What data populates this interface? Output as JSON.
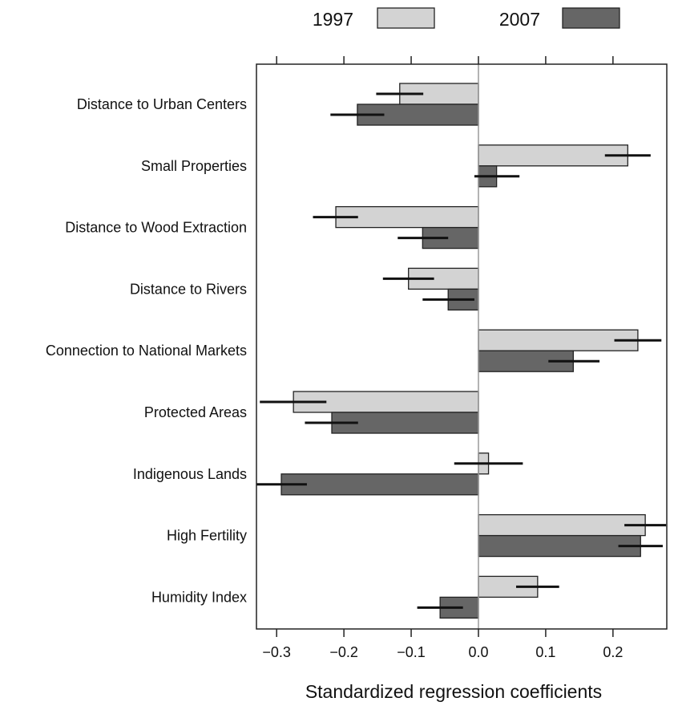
{
  "chart_data": {
    "type": "bar",
    "orientation": "horizontal",
    "xlabel": "Standardized regression coefficients",
    "xlim": [
      -0.33,
      0.28
    ],
    "xticks": [
      -0.3,
      -0.2,
      -0.1,
      0.0,
      0.1,
      0.2
    ],
    "xtick_labels": [
      "−0.3",
      "−0.2",
      "−0.1",
      "0.0",
      "0.1",
      "0.2"
    ],
    "legend_position": "top",
    "categories": [
      "Distance to Urban Centers",
      "Small Properties",
      "Distance to Wood Extraction",
      "Distance to Rivers",
      "Connection to National Markets",
      "Protected Areas",
      "Indigenous Lands",
      "High Fertility",
      "Humidity Index"
    ],
    "series": [
      {
        "name": "1997",
        "color": "#d3d3d3",
        "values": [
          -0.117,
          0.222,
          -0.212,
          -0.104,
          0.237,
          -0.275,
          0.015,
          0.248,
          0.088
        ],
        "ci_low": [
          -0.152,
          0.188,
          -0.246,
          -0.142,
          0.202,
          -0.325,
          -0.036,
          0.217,
          0.056
        ],
        "ci_high": [
          -0.082,
          0.256,
          -0.179,
          -0.066,
          0.272,
          -0.226,
          0.066,
          0.279,
          0.12
        ]
      },
      {
        "name": "2007",
        "color": "#666666",
        "values": [
          -0.18,
          0.027,
          -0.083,
          -0.045,
          0.141,
          -0.218,
          -0.293,
          0.241,
          -0.057
        ],
        "ci_low": [
          -0.22,
          -0.006,
          -0.12,
          -0.083,
          0.104,
          -0.258,
          -0.33,
          0.208,
          -0.091
        ],
        "ci_high": [
          -0.14,
          0.061,
          -0.045,
          -0.006,
          0.18,
          -0.179,
          -0.255,
          0.274,
          -0.023
        ]
      }
    ]
  }
}
